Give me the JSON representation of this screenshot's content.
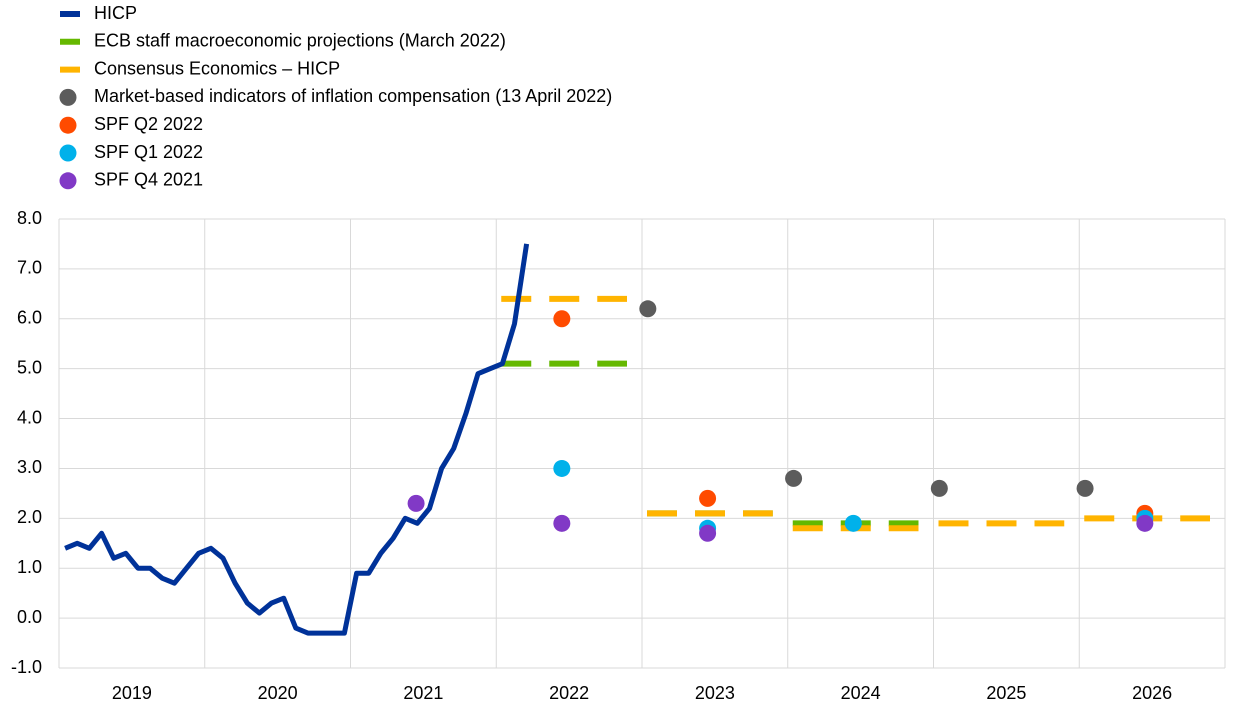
{
  "chart_data": {
    "type": "line",
    "xlim": [
      2019,
      2027
    ],
    "xticks": [
      2019,
      2020,
      2021,
      2022,
      2023,
      2024,
      2025,
      2026
    ],
    "ylim": [
      -1,
      8
    ],
    "yticks": [
      {
        "value": -1,
        "label": "-1.0"
      },
      {
        "value": 0,
        "label": "0.0"
      },
      {
        "value": 1,
        "label": "1.0"
      },
      {
        "value": 2,
        "label": "2.0"
      },
      {
        "value": 3,
        "label": "3.0"
      },
      {
        "value": 4,
        "label": "4.0"
      },
      {
        "value": 5,
        "label": "5.0"
      },
      {
        "value": 6,
        "label": "6.0"
      },
      {
        "value": 7,
        "label": "7.0"
      },
      {
        "value": 8,
        "label": "8.0"
      }
    ],
    "grid": true,
    "legend": "top-left",
    "series": [
      {
        "name": "HICP",
        "color": "#003299",
        "style": "line",
        "x": [
          2019.042,
          2019.125,
          2019.208,
          2019.292,
          2019.375,
          2019.458,
          2019.542,
          2019.625,
          2019.708,
          2019.792,
          2019.875,
          2019.958,
          2020.042,
          2020.125,
          2020.208,
          2020.292,
          2020.375,
          2020.458,
          2020.542,
          2020.625,
          2020.708,
          2020.792,
          2020.875,
          2020.958,
          2021.042,
          2021.125,
          2021.208,
          2021.292,
          2021.375,
          2021.458,
          2021.542,
          2021.625,
          2021.708,
          2021.792,
          2021.875,
          2021.958,
          2022.042,
          2022.125,
          2022.208
        ],
        "values": [
          1.4,
          1.5,
          1.4,
          1.7,
          1.2,
          1.3,
          1.0,
          1.0,
          0.8,
          0.7,
          1.0,
          1.3,
          1.4,
          1.2,
          0.7,
          0.3,
          0.1,
          0.3,
          0.4,
          -0.2,
          -0.3,
          -0.3,
          -0.3,
          -0.3,
          0.9,
          0.9,
          1.3,
          1.6,
          2.0,
          1.9,
          2.2,
          3.0,
          3.4,
          4.1,
          4.9,
          5.0,
          5.1,
          5.9,
          7.5
        ]
      },
      {
        "name": "ECB staff macroeconomic projections (March 2022)",
        "color": "#65b800",
        "style": "dash",
        "x": [
          2022,
          2023,
          2024
        ],
        "values": [
          5.1,
          2.1,
          1.9
        ]
      },
      {
        "name": "Consensus Economics – HICP",
        "color": "#ffb400",
        "style": "dash",
        "x": [
          2022,
          2023,
          2024,
          2025,
          2026
        ],
        "values": [
          6.4,
          2.1,
          1.8,
          1.9,
          2.0
        ]
      },
      {
        "name": "Market-based indicators of inflation compensation (13 April 2022)",
        "color": "#5c5c5c",
        "style": "dot",
        "x": [
          2023.04,
          2024.04,
          2025.04,
          2026.04
        ],
        "values": [
          6.2,
          2.8,
          2.6,
          2.6
        ]
      },
      {
        "name": "SPF Q2 2022",
        "color": "#ff4b00",
        "style": "dot",
        "x": [
          2022.45,
          2023.45,
          2026.45
        ],
        "values": [
          6.0,
          2.4,
          2.1
        ]
      },
      {
        "name": "SPF Q1 2022",
        "color": "#00b1ea",
        "style": "dot",
        "x": [
          2022.45,
          2023.45,
          2024.45,
          2026.45
        ],
        "values": [
          3.0,
          1.8,
          1.9,
          2.0
        ]
      },
      {
        "name": "SPF Q4 2021",
        "color": "#8139c6",
        "style": "dot",
        "x": [
          2021.45,
          2022.45,
          2023.45,
          2026.45
        ],
        "values": [
          2.3,
          1.9,
          1.7,
          1.9
        ]
      }
    ]
  }
}
